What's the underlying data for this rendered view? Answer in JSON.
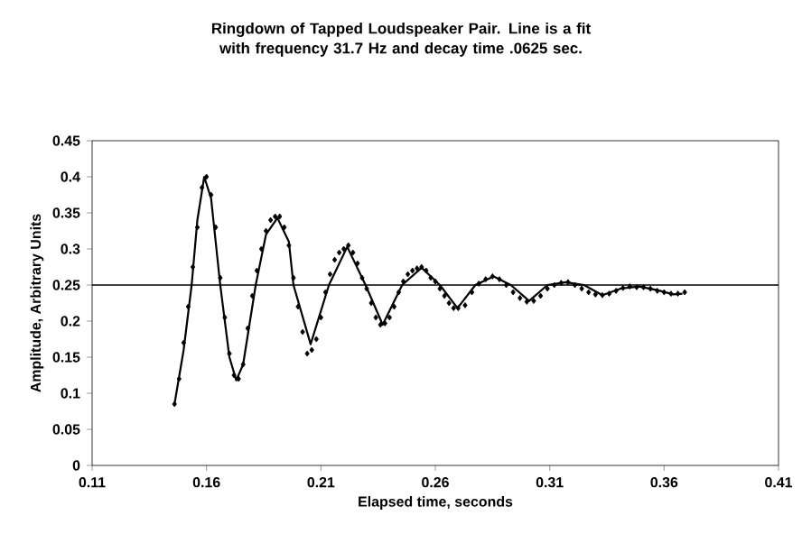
{
  "chart_data": {
    "type": "scatter",
    "title": "Ringdown of Tapped Loudspeaker Pair. Line is a fit with frequency 31.7 Hz and decay time .0625 sec.",
    "xlabel": "Elapsed time, seconds",
    "ylabel": "Amplitude, Arbitrary Units",
    "xlim": [
      0.11,
      0.41
    ],
    "xticks": [
      0.11,
      0.16,
      0.21,
      0.26,
      0.31,
      0.36,
      0.41
    ],
    "ylim": [
      0,
      0.45
    ],
    "yticks": [
      0,
      0.05,
      0.1,
      0.15,
      0.2,
      0.25,
      0.3,
      0.35,
      0.4,
      0.45
    ],
    "grid": false,
    "ref_lines": [
      {
        "axis": "y",
        "value": 0.25,
        "color": "#000000"
      }
    ],
    "series": [
      {
        "color": "#000000",
        "marker": "diamond",
        "x": [
          0.146,
          0.148,
          0.15,
          0.152,
          0.154,
          0.156,
          0.158,
          0.16,
          0.162,
          0.164,
          0.166,
          0.168,
          0.17,
          0.172,
          0.174,
          0.176,
          0.178,
          0.18,
          0.182,
          0.184,
          0.186,
          0.188,
          0.19,
          0.192,
          0.194,
          0.196,
          0.198,
          0.2,
          0.202,
          0.204,
          0.206,
          0.208,
          0.21,
          0.212,
          0.214,
          0.216,
          0.218,
          0.22,
          0.222,
          0.224,
          0.226,
          0.228,
          0.23,
          0.232,
          0.234,
          0.236,
          0.238,
          0.24,
          0.242,
          0.244,
          0.246,
          0.248,
          0.25,
          0.252,
          0.254,
          0.256,
          0.258,
          0.26,
          0.262,
          0.264,
          0.266,
          0.268,
          0.27,
          0.273,
          0.276,
          0.279,
          0.282,
          0.285,
          0.288,
          0.291,
          0.294,
          0.297,
          0.3,
          0.303,
          0.306,
          0.309,
          0.312,
          0.315,
          0.318,
          0.321,
          0.324,
          0.327,
          0.33,
          0.333,
          0.336,
          0.339,
          0.342,
          0.345,
          0.348,
          0.351,
          0.354,
          0.357,
          0.36,
          0.363,
          0.366,
          0.369
        ],
        "values": [
          0.085,
          0.12,
          0.17,
          0.22,
          0.275,
          0.33,
          0.385,
          0.4,
          0.375,
          0.33,
          0.26,
          0.205,
          0.155,
          0.125,
          0.12,
          0.14,
          0.19,
          0.235,
          0.27,
          0.3,
          0.325,
          0.34,
          0.345,
          0.345,
          0.33,
          0.305,
          0.26,
          0.22,
          0.185,
          0.155,
          0.16,
          0.175,
          0.205,
          0.24,
          0.265,
          0.285,
          0.295,
          0.3,
          0.305,
          0.295,
          0.28,
          0.26,
          0.245,
          0.225,
          0.205,
          0.195,
          0.197,
          0.205,
          0.22,
          0.24,
          0.255,
          0.265,
          0.27,
          0.273,
          0.275,
          0.27,
          0.26,
          0.255,
          0.245,
          0.235,
          0.225,
          0.218,
          0.218,
          0.222,
          0.24,
          0.252,
          0.258,
          0.262,
          0.258,
          0.25,
          0.24,
          0.232,
          0.227,
          0.228,
          0.235,
          0.245,
          0.25,
          0.253,
          0.254,
          0.25,
          0.245,
          0.24,
          0.237,
          0.236,
          0.238,
          0.242,
          0.246,
          0.248,
          0.247,
          0.247,
          0.245,
          0.242,
          0.24,
          0.238,
          0.238,
          0.24
        ]
      },
      {
        "type": "line",
        "color": "#000000",
        "marker": "none",
        "line_style": "solid",
        "x": [
          0.146,
          0.15,
          0.1535,
          0.156,
          0.159,
          0.162,
          0.166,
          0.17,
          0.173,
          0.176,
          0.1815,
          0.186,
          0.191,
          0.196,
          0.198,
          0.2055,
          0.2135,
          0.2215,
          0.2295,
          0.237,
          0.2455,
          0.254,
          0.262,
          0.2697,
          0.2775,
          0.2855,
          0.293,
          0.301,
          0.309,
          0.317,
          0.325,
          0.333,
          0.341,
          0.349,
          0.357,
          0.364,
          0.368
        ],
        "values": [
          0.085,
          0.16,
          0.25,
          0.34,
          0.4,
          0.37,
          0.25,
          0.15,
          0.118,
          0.14,
          0.25,
          0.32,
          0.343,
          0.31,
          0.25,
          0.168,
          0.25,
          0.303,
          0.25,
          0.195,
          0.25,
          0.274,
          0.25,
          0.218,
          0.25,
          0.262,
          0.25,
          0.228,
          0.25,
          0.254,
          0.25,
          0.236,
          0.245,
          0.248,
          0.243,
          0.237,
          0.238
        ]
      }
    ]
  }
}
